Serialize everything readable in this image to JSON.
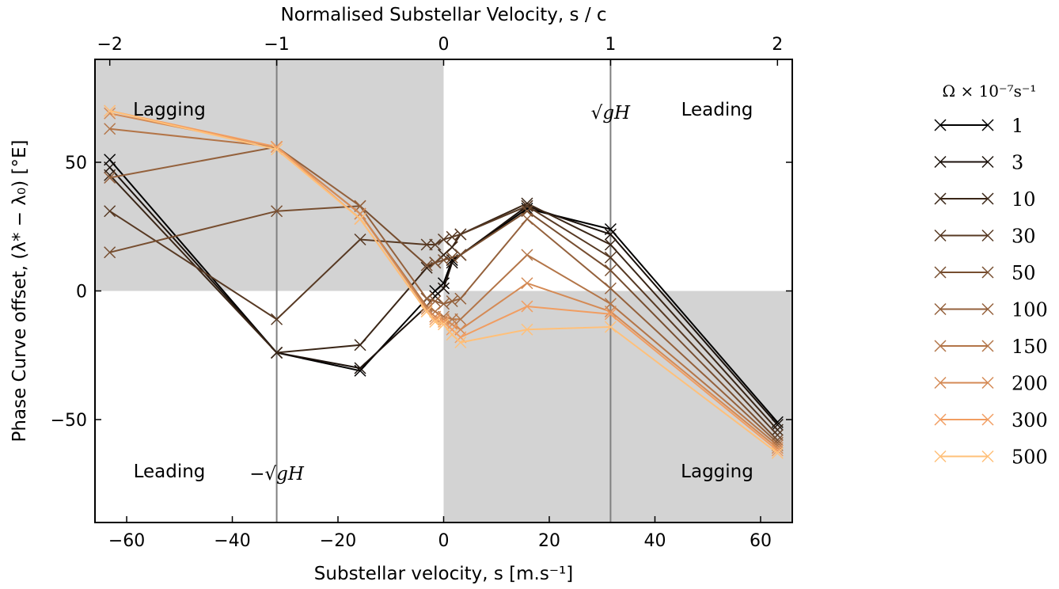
{
  "chart_data": {
    "type": "line",
    "xlabel": "Substellar velocity, s [m.s⁻¹]",
    "ylabel": "Phase Curve offset, (λ* − λ₀) [°E]",
    "top_xlabel": "Normalised Substellar Velocity, s / c",
    "xlim": [
      -66,
      66
    ],
    "ylim": [
      -90,
      90
    ],
    "x_ticks": [
      -60,
      -40,
      -20,
      0,
      20,
      40,
      60
    ],
    "x_tick_labels": [
      "−60",
      "−40",
      "−20",
      "0",
      "20",
      "40",
      "60"
    ],
    "y_ticks": [
      -50,
      0,
      50
    ],
    "y_tick_labels": [
      "−50",
      "0",
      "50"
    ],
    "top_ticks": [
      -2,
      -1,
      0,
      1,
      2
    ],
    "top_tick_labels": [
      "−2",
      "−1",
      "0",
      "1",
      "2"
    ],
    "c_value": 31.6,
    "shaded_regions": [
      {
        "x": [
          -66,
          0
        ],
        "y": [
          0,
          90
        ]
      },
      {
        "x": [
          0,
          66
        ],
        "y": [
          -90,
          0
        ]
      }
    ],
    "vlines": [
      -31.6,
      31.6
    ],
    "annotations": {
      "lagging_upper": "Lagging",
      "leading_upper": "Leading",
      "leading_lower": "Leading",
      "lagging_lower": "Lagging",
      "sqrt_pos": "√gH",
      "sqrt_neg": "−√gH"
    },
    "x": [
      -63.2,
      -31.6,
      -15.8,
      -3.2,
      -1.6,
      0,
      1.6,
      3.2,
      15.8,
      31.6,
      63.2
    ],
    "legend_title": "Ω × 10⁻⁷s⁻¹",
    "legend_position": "right",
    "series": [
      {
        "name": "1",
        "color": "#000000",
        "values": [
          51,
          -24,
          -31,
          -3,
          0,
          3,
          12,
          14,
          32,
          24,
          -51
        ]
      },
      {
        "name": "3",
        "color": "#1c120c",
        "values": [
          48,
          -24,
          -30,
          -6,
          -2,
          1,
          11,
          14,
          33,
          22,
          -52
        ]
      },
      {
        "name": "10",
        "color": "#3a2617",
        "values": [
          45,
          -24,
          -21,
          9,
          11,
          14,
          17,
          22,
          34,
          18,
          -54
        ]
      },
      {
        "name": "30",
        "color": "#573923",
        "values": [
          31,
          -11,
          20,
          18,
          18,
          20,
          21,
          22,
          33,
          13,
          -56
        ]
      },
      {
        "name": "50",
        "color": "#774e30",
        "values": [
          15,
          31,
          33,
          10,
          11,
          12,
          13,
          14,
          31,
          8,
          -58
        ]
      },
      {
        "name": "100",
        "color": "#94613c",
        "values": [
          44,
          56,
          33,
          -3,
          -4,
          -5,
          -4,
          -3,
          28,
          1,
          -59
        ]
      },
      {
        "name": "150",
        "color": "#b37548",
        "values": [
          63,
          56,
          30,
          -6,
          -8,
          -10,
          -11,
          -11,
          14,
          -5,
          -60
        ]
      },
      {
        "name": "200",
        "color": "#d48a55",
        "values": [
          69,
          56,
          30,
          -7,
          -10,
          -11,
          -13,
          -15,
          3,
          -8,
          -61
        ]
      },
      {
        "name": "300",
        "color": "#f19d61",
        "values": [
          70,
          56,
          28,
          -8,
          -11,
          -12,
          -15,
          -18,
          -6,
          -9,
          -62
        ]
      },
      {
        "name": "500",
        "color": "#ffc07a",
        "values": [
          70,
          55,
          28,
          -8,
          -12,
          -13,
          -17,
          -20,
          -15,
          -14,
          -63
        ]
      }
    ]
  }
}
